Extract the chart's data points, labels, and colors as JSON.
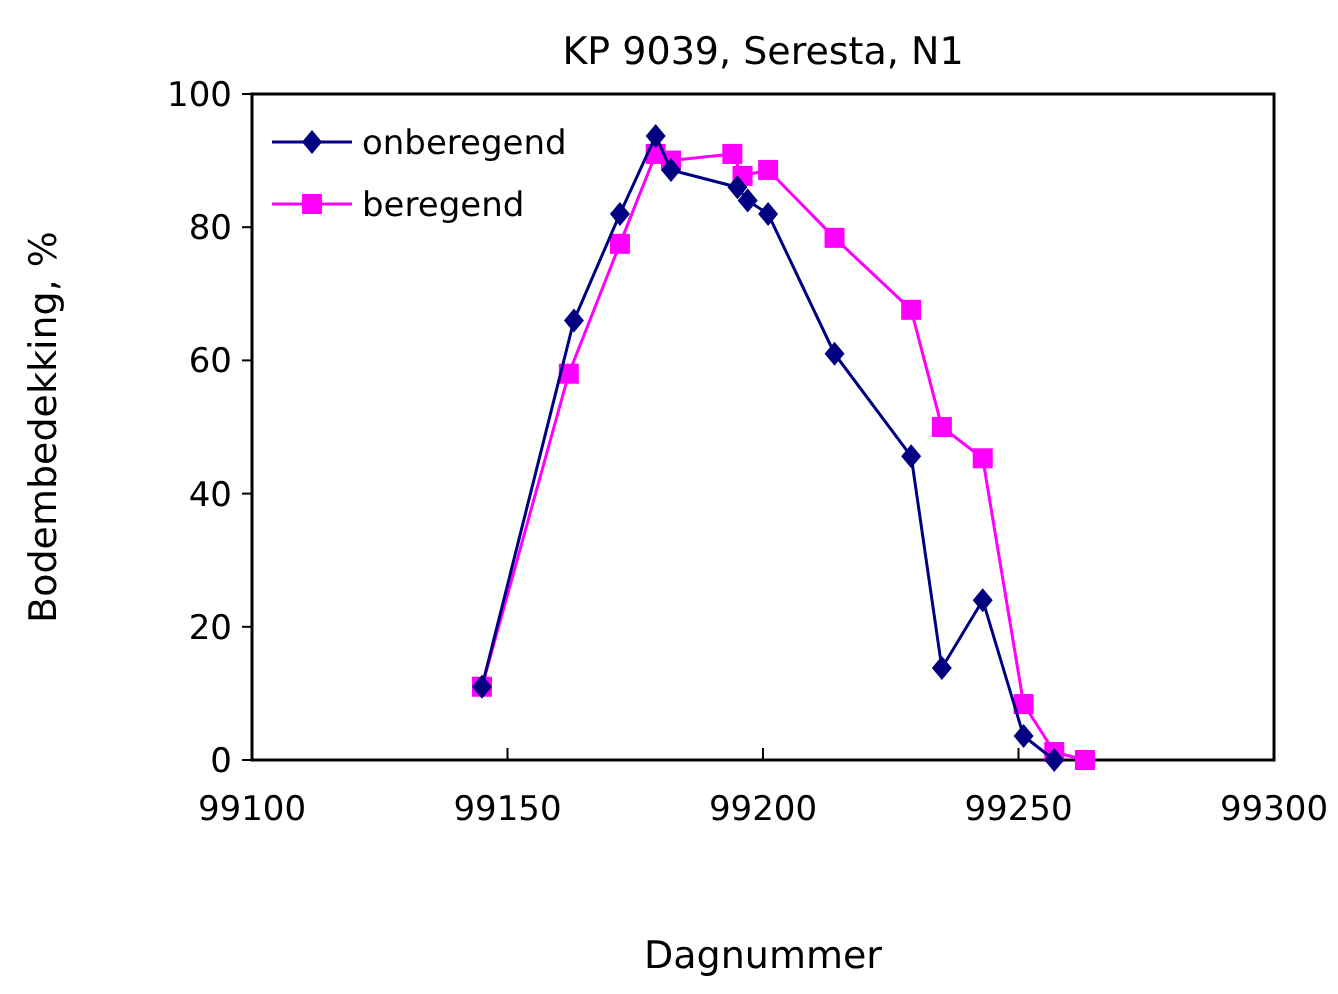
{
  "chart_data": {
    "type": "line",
    "title": "KP 9039, Seresta, N1",
    "xlabel": "Dagnummer",
    "ylabel": "Bodembedekking, %",
    "xlim": [
      99100,
      99300
    ],
    "xticks": [
      99100,
      99150,
      99200,
      99250,
      99300
    ],
    "ylim": [
      0,
      100
    ],
    "yticks": [
      0,
      20,
      40,
      60,
      80,
      100
    ],
    "grid": false,
    "legend": "top left",
    "series": [
      {
        "name": "onberegend",
        "color": "#000080",
        "marker": "diamond",
        "x": [
          99145,
          99163,
          99172,
          99179,
          99182,
          99195,
          99197,
          99201,
          99214,
          99229,
          99235,
          99243,
          99251,
          99257
        ],
        "values": [
          11,
          66,
          82,
          93.7,
          88.6,
          86,
          84,
          82,
          61,
          45.6,
          13.8,
          24,
          3.6,
          0
        ]
      },
      {
        "name": "beregend",
        "color": "#ff00ff",
        "marker": "square",
        "x": [
          99145,
          99162,
          99172,
          99179,
          99182,
          99194,
          99196,
          99201,
          99214,
          99229,
          99235,
          99243,
          99251,
          99257,
          99263
        ],
        "values": [
          11,
          58,
          77.5,
          91,
          90,
          91,
          87.7,
          88.6,
          78.4,
          67.6,
          50,
          45.3,
          8.4,
          1.2,
          0
        ]
      }
    ]
  }
}
